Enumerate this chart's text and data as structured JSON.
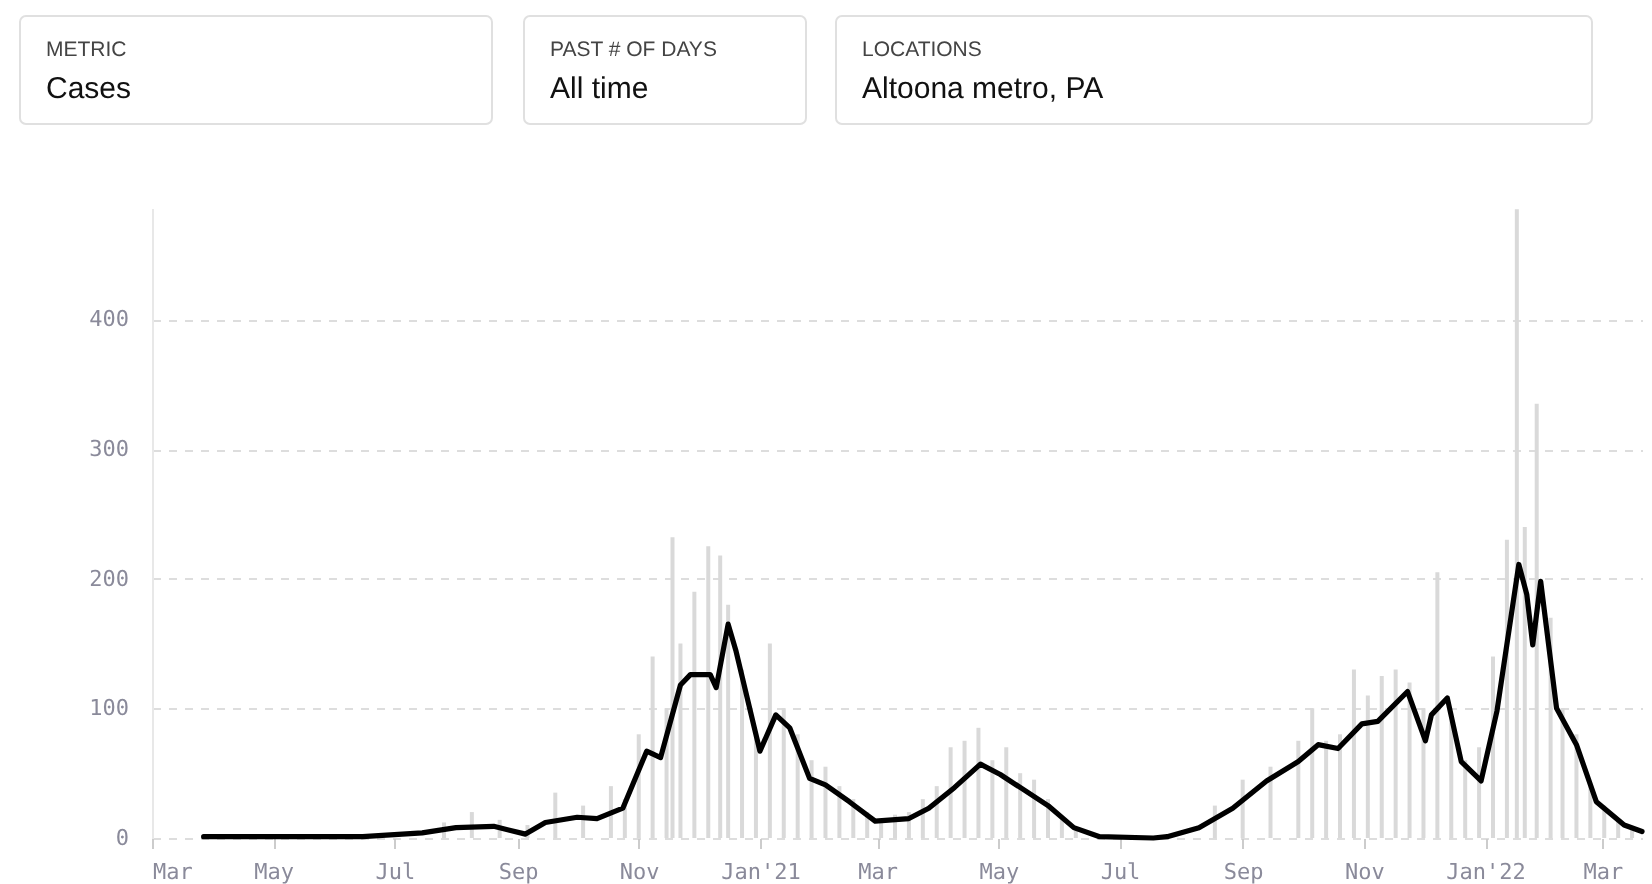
{
  "chart_data": {
    "type": "bar",
    "annotations": [
      "METRIC",
      "Cases",
      "PAST # OF DAYS",
      "All time",
      "LOCATIONS",
      "Altoona metro, PA"
    ],
    "xlim": [
      "2020-03-01",
      "2022-03-21"
    ],
    "xticks": [
      {
        "value": "2020-03-01",
        "label": "Mar"
      },
      {
        "value": "2020-05-01",
        "label": "May"
      },
      {
        "value": "2020-07-01",
        "label": "Jul"
      },
      {
        "value": "2020-09-01",
        "label": "Sep"
      },
      {
        "value": "2020-11-01",
        "label": "Nov"
      },
      {
        "value": "2021-01-01",
        "label": "Jan'21"
      },
      {
        "value": "2021-03-01",
        "label": "Mar"
      },
      {
        "value": "2021-05-01",
        "label": "May"
      },
      {
        "value": "2021-07-01",
        "label": "Jul"
      },
      {
        "value": "2021-09-01",
        "label": "Sep"
      },
      {
        "value": "2021-11-01",
        "label": "Nov"
      },
      {
        "value": "2022-01-01",
        "label": "Jan'22"
      },
      {
        "value": "2022-03-01",
        "label": "Mar"
      }
    ],
    "ylim": [
      0,
      486
    ],
    "yticks": [
      0,
      100,
      200,
      300,
      400
    ],
    "grid": "y",
    "line_style": "solid",
    "series": [
      {
        "color": "#d9d9d9",
        "x": [
          "2020-04-05",
          "2020-04-19",
          "2020-05-03",
          "2020-05-17",
          "2020-05-31",
          "2020-06-14",
          "2020-06-28",
          "2020-07-12",
          "2020-07-26",
          "2020-08-09",
          "2020-08-23",
          "2020-09-06",
          "2020-09-20",
          "2020-10-04",
          "2020-10-18",
          "2020-10-25",
          "2020-11-01",
          "2020-11-08",
          "2020-11-15",
          "2020-11-18",
          "2020-11-22",
          "2020-11-29",
          "2020-12-06",
          "2020-12-12",
          "2020-12-16",
          "2020-12-23",
          "2020-12-30",
          "2021-01-06",
          "2021-01-13",
          "2021-01-20",
          "2021-01-27",
          "2021-02-03",
          "2021-02-10",
          "2021-02-17",
          "2021-02-24",
          "2021-03-03",
          "2021-03-10",
          "2021-03-17",
          "2021-03-24",
          "2021-03-31",
          "2021-04-07",
          "2021-04-14",
          "2021-04-21",
          "2021-04-28",
          "2021-05-05",
          "2021-05-12",
          "2021-05-19",
          "2021-05-26",
          "2021-06-02",
          "2021-06-09",
          "2021-06-16",
          "2021-06-23",
          "2021-07-07",
          "2021-07-21",
          "2021-08-04",
          "2021-08-18",
          "2021-09-01",
          "2021-09-15",
          "2021-09-29",
          "2021-10-06",
          "2021-10-13",
          "2021-10-20",
          "2021-10-27",
          "2021-11-03",
          "2021-11-10",
          "2021-11-17",
          "2021-11-24",
          "2021-12-01",
          "2021-12-08",
          "2021-12-15",
          "2021-12-22",
          "2021-12-29",
          "2022-01-05",
          "2022-01-12",
          "2022-01-17",
          "2022-01-21",
          "2022-01-27",
          "2022-02-03",
          "2022-02-09",
          "2022-02-16",
          "2022-02-23",
          "2022-03-02",
          "2022-03-09",
          "2022-03-16"
        ],
        "values": [
          2,
          1,
          2,
          1,
          2,
          1,
          null,
          null,
          12,
          20,
          14,
          10,
          35,
          25,
          40,
          30,
          80,
          140,
          100,
          232,
          150,
          190,
          225,
          218,
          180,
          130,
          80,
          150,
          100,
          80,
          60,
          55,
          40,
          30,
          20,
          15,
          18,
          20,
          30,
          40,
          70,
          75,
          85,
          60,
          70,
          50,
          45,
          30,
          15,
          8,
          null,
          2,
          1,
          2,
          null,
          25,
          45,
          55,
          75,
          100,
          75,
          80,
          130,
          110,
          125,
          130,
          120,
          100,
          205,
          90,
          60,
          70,
          140,
          230,
          485,
          240,
          335,
          170,
          100,
          80,
          40,
          25,
          15,
          8
        ]
      },
      {
        "type": "line",
        "color": "#000000",
        "x": [
          "2020-03-27",
          "2020-05-01",
          "2020-06-15",
          "2020-07-15",
          "2020-08-01",
          "2020-08-20",
          "2020-09-05",
          "2020-09-15",
          "2020-10-01",
          "2020-10-11",
          "2020-10-24",
          "2020-11-05",
          "2020-11-12",
          "2020-11-22",
          "2020-11-27",
          "2020-12-07",
          "2020-12-10",
          "2020-12-16",
          "2020-12-20",
          "2021-01-01",
          "2021-01-09",
          "2021-01-16",
          "2021-01-26",
          "2021-02-03",
          "2021-02-15",
          "2021-02-28",
          "2021-03-17",
          "2021-03-27",
          "2021-04-09",
          "2021-04-22",
          "2021-05-02",
          "2021-05-12",
          "2021-05-26",
          "2021-06-08",
          "2021-06-21",
          "2021-07-18",
          "2021-07-25",
          "2021-08-10",
          "2021-08-27",
          "2021-09-13",
          "2021-09-29",
          "2021-10-09",
          "2021-10-19",
          "2021-10-31",
          "2021-11-08",
          "2021-11-23",
          "2021-12-02",
          "2021-12-05",
          "2021-12-13",
          "2021-12-20",
          "2021-12-30",
          "2022-01-07",
          "2022-01-14",
          "2022-01-18",
          "2022-01-22",
          "2022-01-25",
          "2022-01-29",
          "2022-02-06",
          "2022-02-16",
          "2022-02-26",
          "2022-03-12",
          "2022-03-21"
        ],
        "values": [
          1,
          1,
          1,
          4,
          8,
          9,
          3,
          12,
          16,
          15,
          23,
          67,
          62,
          118,
          126,
          126,
          116,
          165,
          144,
          67,
          95,
          85,
          46,
          41,
          28,
          13,
          15,
          23,
          39,
          57,
          49,
          39,
          25,
          8,
          1,
          0,
          1,
          8,
          23,
          44,
          59,
          72,
          69,
          88,
          90,
          113,
          75,
          95,
          108,
          59,
          44,
          98,
          170,
          211,
          188,
          149,
          198,
          100,
          72,
          28,
          10,
          5
        ]
      }
    ]
  }
}
